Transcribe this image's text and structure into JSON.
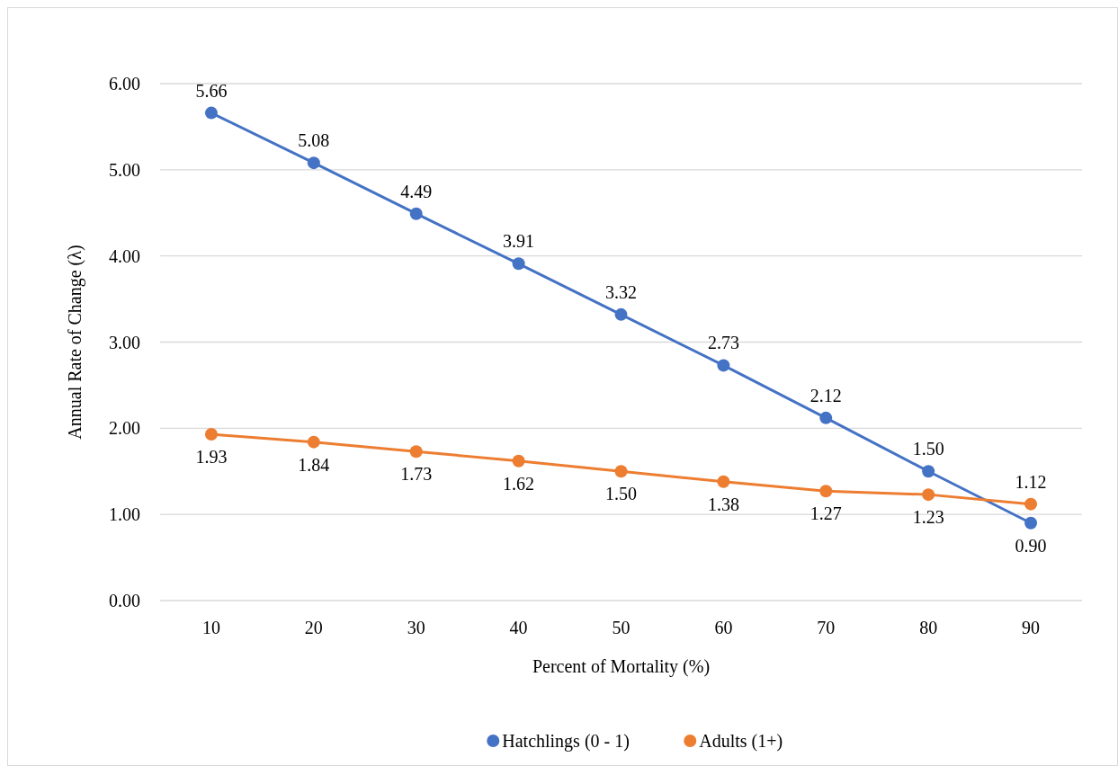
{
  "chart_data": {
    "type": "line",
    "xlabel": "Percent of Mortality (%)",
    "ylabel": "Annual Rate of Change (λ)",
    "categories": [
      "10",
      "20",
      "30",
      "40",
      "50",
      "60",
      "70",
      "80",
      "90"
    ],
    "series": [
      {
        "name": "Hatchlings (0 - 1)",
        "color": "#4472c4",
        "values": [
          5.66,
          5.08,
          4.49,
          3.91,
          3.32,
          2.73,
          2.12,
          1.5,
          0.9
        ],
        "value_labels": [
          "5.66",
          "5.08",
          "4.49",
          "3.91",
          "3.32",
          "2.73",
          "2.12",
          "1.50",
          "0.90"
        ]
      },
      {
        "name": "Adults (1+)",
        "color": "#ed7d31",
        "values": [
          1.93,
          1.84,
          1.73,
          1.62,
          1.5,
          1.38,
          1.27,
          1.23,
          1.12
        ],
        "value_labels": [
          "1.93",
          "1.84",
          "1.73",
          "1.62",
          "1.50",
          "1.38",
          "1.27",
          "1.23",
          "1.12"
        ]
      }
    ],
    "ylim": [
      0,
      6
    ],
    "yticks": [
      {
        "value": 0,
        "label": "0.00"
      },
      {
        "value": 1,
        "label": "1.00"
      },
      {
        "value": 2,
        "label": "2.00"
      },
      {
        "value": 3,
        "label": "3.00"
      },
      {
        "value": 4,
        "label": "4.00"
      },
      {
        "value": 5,
        "label": "5.00"
      },
      {
        "value": 6,
        "label": "6.00"
      }
    ],
    "grid": "y",
    "legend": "bottom",
    "marker": "circle",
    "line_style": "solid"
  }
}
